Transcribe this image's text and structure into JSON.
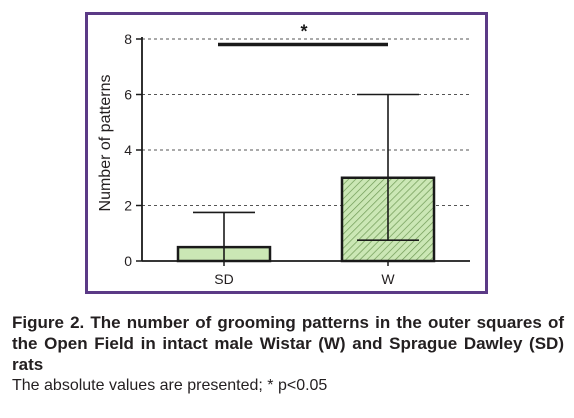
{
  "chart_data": {
    "type": "bar",
    "categories": [
      "SD",
      "W"
    ],
    "values": [
      0.5,
      3.0
    ],
    "error_upper": [
      1.75,
      6.0
    ],
    "error_lower": [
      0.0,
      0.75
    ],
    "ylabel": "Number of patterns",
    "xlabel": "",
    "ylim": [
      0,
      8
    ],
    "yticks": [
      0,
      2,
      4,
      6,
      8
    ],
    "ytick_labels": [
      "0",
      "2",
      "4",
      "6",
      "8"
    ],
    "grid": true,
    "bar_fill": "#cbe7b5",
    "bar_hatch": "#6f9a55",
    "bar_stroke": "#1a1a1a",
    "frame_color": "#5b3a86",
    "significance": {
      "between": [
        "SD",
        "W"
      ],
      "level": 7.8,
      "label": "*"
    }
  },
  "caption": {
    "title": "Figure 2. The number of grooming patterns in the outer squares of the Open Field in intact male Wistar (W) and Sprague Dawley (SD) rats",
    "note": "The absolute values are presented; * p<0.05"
  }
}
